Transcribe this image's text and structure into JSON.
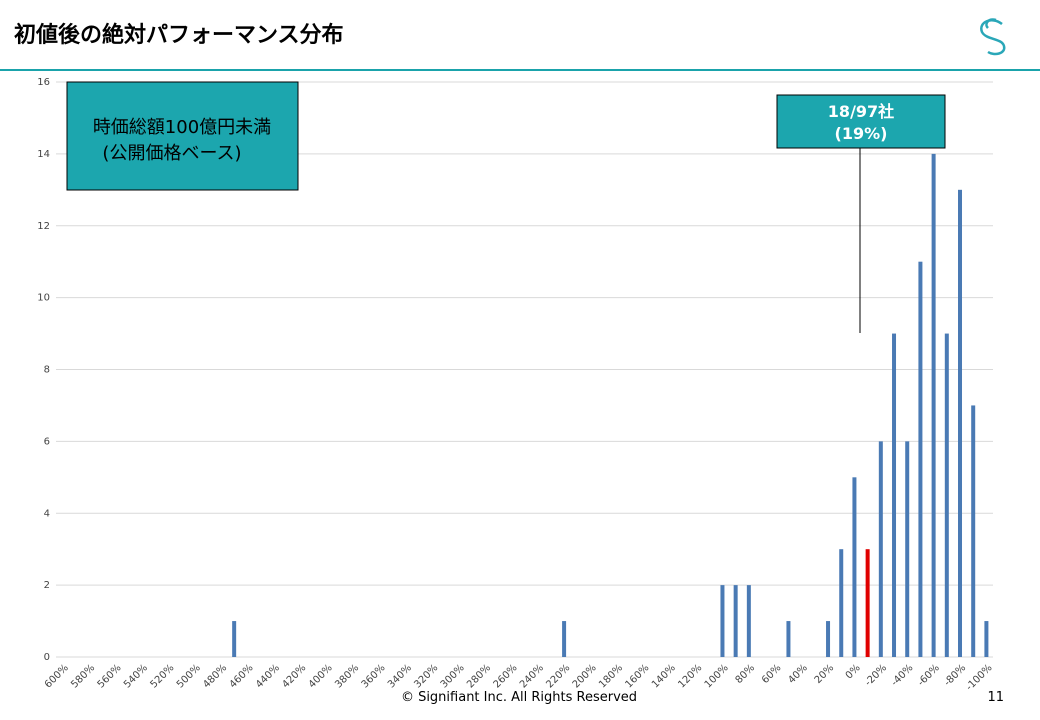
{
  "title": "初値後の絶対パフォーマンス分布",
  "footer": "© Signifiant Inc. All Rights Reserved",
  "page_number": "11",
  "chart_data": {
    "type": "bar",
    "categories": [
      "600%",
      null,
      "580%",
      null,
      "560%",
      null,
      "540%",
      null,
      "520%",
      null,
      "500%",
      null,
      "480%",
      null,
      "460%",
      null,
      "440%",
      null,
      "420%",
      null,
      "400%",
      null,
      "380%",
      null,
      "360%",
      null,
      "340%",
      null,
      "320%",
      null,
      "300%",
      null,
      "280%",
      null,
      "260%",
      null,
      "240%",
      null,
      "220%",
      null,
      "200%",
      null,
      "180%",
      null,
      "160%",
      null,
      "140%",
      null,
      "120%",
      null,
      "100%",
      null,
      "80%",
      null,
      "60%",
      null,
      "40%",
      null,
      "20%",
      null,
      "0%",
      null,
      "-20%",
      null,
      "-40%",
      null,
      "-60%",
      null,
      "-80%",
      null,
      "-100%"
    ],
    "values": [
      0,
      0,
      0,
      0,
      0,
      0,
      0,
      0,
      0,
      0,
      0,
      0,
      0,
      1,
      0,
      0,
      0,
      0,
      0,
      0,
      0,
      0,
      0,
      0,
      0,
      0,
      0,
      0,
      0,
      0,
      0,
      0,
      0,
      0,
      0,
      0,
      0,
      0,
      1,
      0,
      0,
      0,
      0,
      0,
      0,
      0,
      0,
      0,
      0,
      0,
      2,
      2,
      2,
      0,
      0,
      1,
      0,
      0,
      1,
      3,
      5,
      3,
      6,
      9,
      6,
      11,
      14,
      9,
      13,
      7,
      1
    ],
    "colors": [
      "#4a7ab4",
      "#4a7ab4",
      "#4a7ab4",
      "#4a7ab4",
      "#4a7ab4",
      "#4a7ab4",
      "#4a7ab4",
      "#4a7ab4",
      "#4a7ab4",
      "#4a7ab4",
      "#4a7ab4",
      "#4a7ab4",
      "#4a7ab4",
      "#4a7ab4",
      "#4a7ab4",
      "#4a7ab4",
      "#4a7ab4",
      "#4a7ab4",
      "#4a7ab4",
      "#4a7ab4",
      "#4a7ab4",
      "#4a7ab4",
      "#4a7ab4",
      "#4a7ab4",
      "#4a7ab4",
      "#4a7ab4",
      "#4a7ab4",
      "#4a7ab4",
      "#4a7ab4",
      "#4a7ab4",
      "#4a7ab4",
      "#4a7ab4",
      "#4a7ab4",
      "#4a7ab4",
      "#4a7ab4",
      "#4a7ab4",
      "#4a7ab4",
      "#4a7ab4",
      "#4a7ab4",
      "#4a7ab4",
      "#4a7ab4",
      "#4a7ab4",
      "#4a7ab4",
      "#4a7ab4",
      "#4a7ab4",
      "#4a7ab4",
      "#4a7ab4",
      "#4a7ab4",
      "#4a7ab4",
      "#4a7ab4",
      "#4a7ab4",
      "#4a7ab4",
      "#4a7ab4",
      "#4a7ab4",
      "#4a7ab4",
      "#4a7ab4",
      "#4a7ab4",
      "#4a7ab4",
      "#4a7ab4",
      "#4a7ab4",
      "#4a7ab4",
      "#e00000",
      "#4a7ab4",
      "#4a7ab4",
      "#4a7ab4",
      "#4a7ab4",
      "#4a7ab4",
      "#4a7ab4",
      "#4a7ab4",
      "#4a7ab4",
      "#4a7ab4"
    ],
    "ylim": [
      0,
      16
    ],
    "yticks": [
      0,
      2,
      4,
      6,
      8,
      10,
      12,
      14,
      16
    ],
    "grid": true,
    "annotations": [
      [
        "時価総額100億円未満",
        "(公開価格ベース)"
      ],
      [
        "18/97社",
        "(19%)"
      ]
    ]
  }
}
